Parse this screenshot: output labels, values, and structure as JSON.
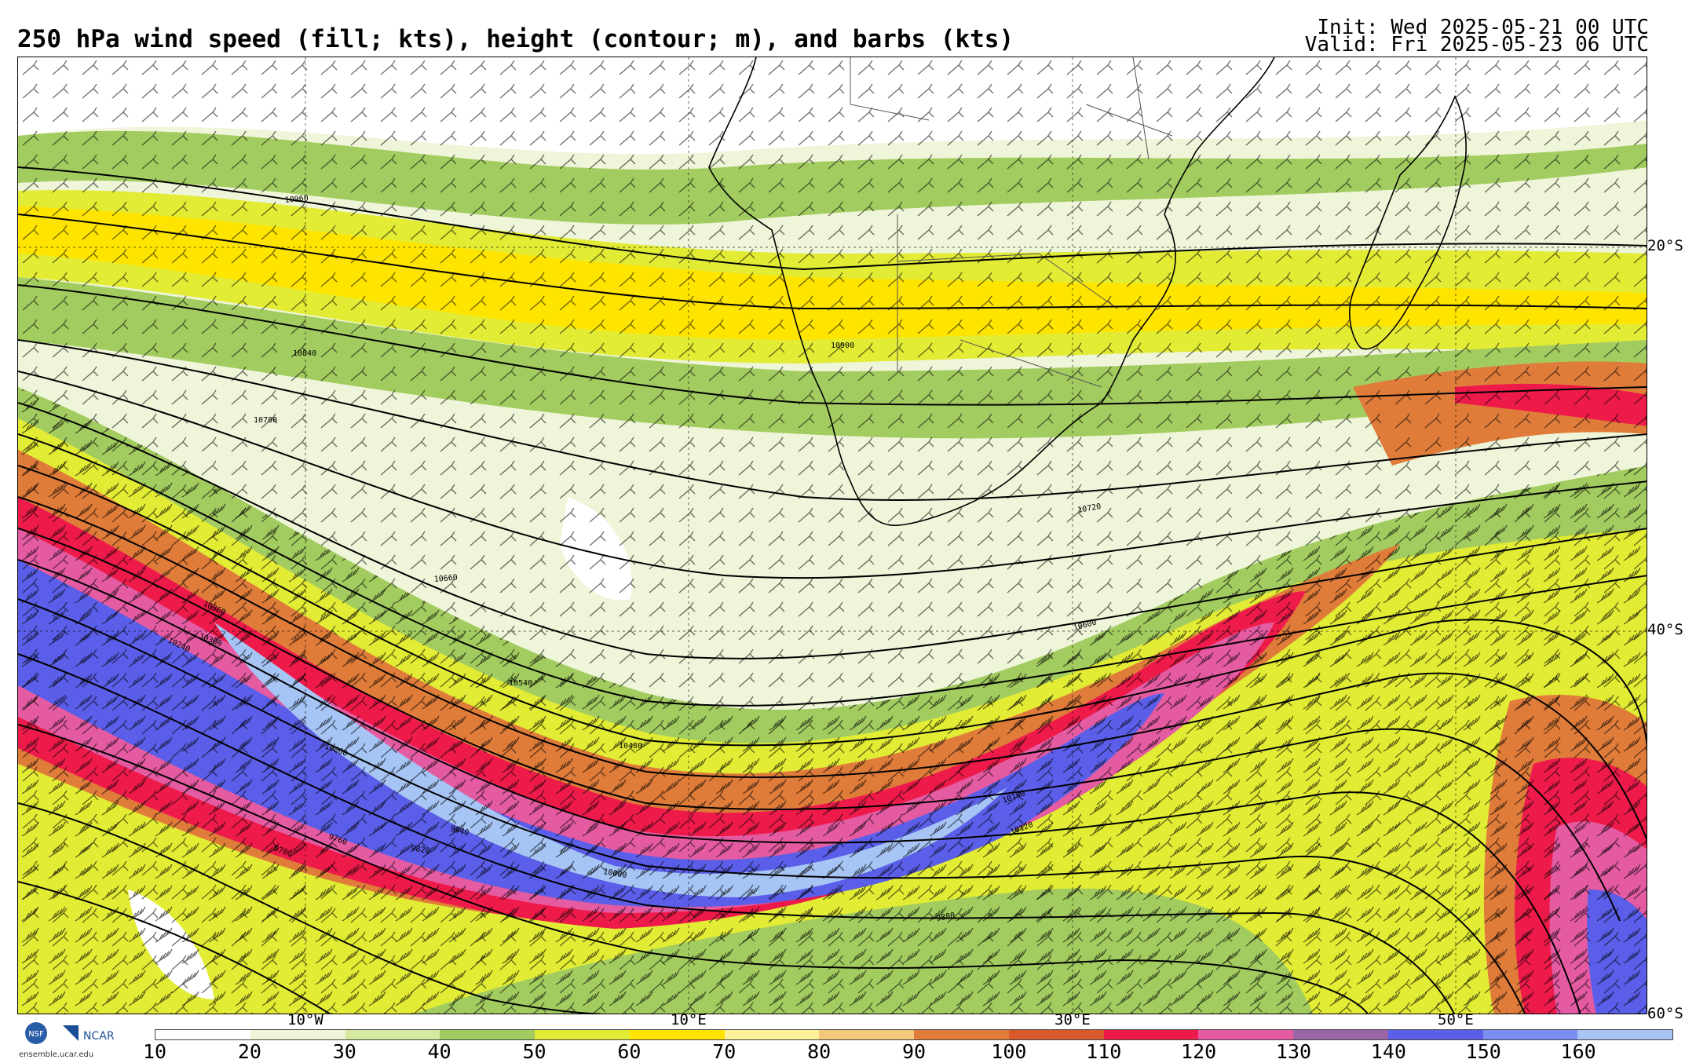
{
  "header": {
    "title": "250 hPa wind speed (fill; kts), height (contour; m), and barbs (kts)",
    "init": "Init: Wed 2025-05-21 00 UTC",
    "valid": "Valid: Fri 2025-05-23 06 UTC"
  },
  "map": {
    "lat_labels": [
      "20°S",
      "40°S",
      "60°S"
    ],
    "lon_labels": [
      "10°W",
      "10°E",
      "30°E",
      "50°E"
    ],
    "contour_labels": [
      "10960",
      "10900",
      "10840",
      "10780",
      "10720",
      "10660",
      "10600",
      "10540",
      "10480",
      "10360",
      "10300",
      "10240",
      "10180",
      "10120",
      "10060",
      "10000",
      "9940",
      "9880",
      "9820",
      "9760",
      "9700"
    ]
  },
  "logos": {
    "nsf": "NSF",
    "ncar": "NCAR",
    "url": "ensemble.ucar.edu"
  },
  "colorbar": {
    "ticks": [
      "10",
      "20",
      "30",
      "40",
      "50",
      "60",
      "70",
      "80",
      "90",
      "100",
      "110",
      "120",
      "130",
      "140",
      "150",
      "160"
    ],
    "colors": [
      "#ffffff",
      "#eef5d8",
      "#d6e9a0",
      "#a3cc60",
      "#e2ec34",
      "#ffe400",
      "#fff09a",
      "#f2c87c",
      "#e07c3a",
      "#d85a2c",
      "#ee1b4a",
      "#e45ba2",
      "#9a66a8",
      "#5b5ee8",
      "#7d8ef2",
      "#a6c4f4"
    ]
  },
  "colors": {
    "frame": "#000000",
    "contour": "#000000"
  }
}
